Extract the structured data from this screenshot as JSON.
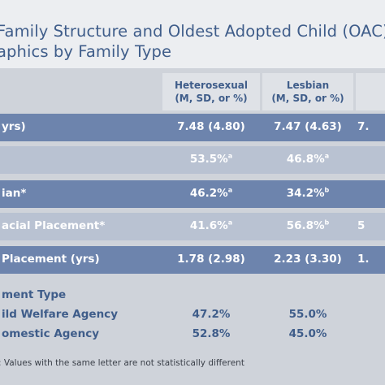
{
  "title": {
    "line1": "Family Structure and Oldest Adopted Child (OAC)",
    "line2": "aphics by Family Type"
  },
  "columns": [
    {
      "name": "Heterosexual",
      "sub": "(M, SD, or %)"
    },
    {
      "name": "Lesbian",
      "sub": "(M, SD, or %)"
    },
    {
      "name": "",
      "sub": ""
    }
  ],
  "rows": [
    {
      "label": "yrs)",
      "v1": "7.48 (4.80)",
      "v2": "7.47 (4.63)",
      "v3": "7.",
      "style": "dark"
    },
    {
      "label": "",
      "v1": "53.5%",
      "s1": "a",
      "v2": "46.8%",
      "s2": "a",
      "v3": "",
      "style": "light"
    },
    {
      "label": "ian*",
      "v1": "46.2%",
      "s1": "a",
      "v2": "34.2%",
      "s2": "b",
      "v3": "",
      "style": "dark"
    },
    {
      "label": "acial Placement*",
      "v1": "41.6%",
      "s1": "a",
      "v2": "56.8%",
      "s2": "b",
      "v3": "5",
      "style": "light"
    },
    {
      "label": "Placement (yrs)",
      "v1": "1.78 (2.98)",
      "v2": "2.23 (3.30)",
      "v3": "1.",
      "style": "dark"
    }
  ],
  "placement_type": {
    "heading": "ment Type",
    "items": [
      {
        "label": "ild Welfare Agency",
        "v1": "47.2%",
        "v2": "55.0%"
      },
      {
        "label": "omestic Agency",
        "v1": "52.8%",
        "v2": "45.0%"
      }
    ]
  },
  "footnote": ": Values with the same letter are not statistically different"
}
